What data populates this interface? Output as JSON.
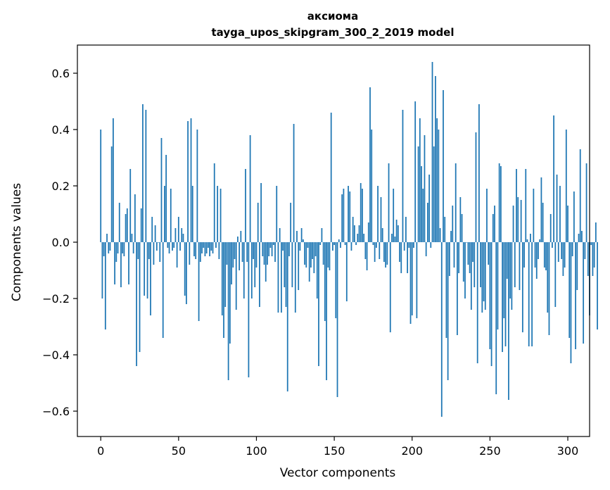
{
  "chart_data": {
    "type": "bar",
    "title": "аксиома",
    "subtitle": "tayga_upos_skipgram_300_2_2019 model",
    "xlabel": "Vector components",
    "ylabel": "Components values",
    "xlim": [
      -15,
      314
    ],
    "ylim": [
      -0.69,
      0.7
    ],
    "xticks": [
      0,
      50,
      100,
      150,
      200,
      250,
      300
    ],
    "xtick_labels": [
      "0",
      "50",
      "100",
      "150",
      "200",
      "250",
      "300"
    ],
    "yticks": [
      -0.6,
      -0.4,
      -0.2,
      0.0,
      0.2,
      0.4,
      0.6
    ],
    "ytick_labels": [
      "−0.6",
      "−0.4",
      "−0.2",
      "0.0",
      "0.2",
      "0.4",
      "0.6"
    ],
    "grid": false,
    "bar_color": "#1f77b4",
    "series": [
      {
        "values": [
          0.4,
          -0.2,
          -0.05,
          -0.31,
          0.03,
          -0.04,
          -0.03,
          0.34,
          0.44,
          -0.15,
          -0.07,
          -0.04,
          0.14,
          -0.16,
          -0.04,
          -0.05,
          0.1,
          0.12,
          -0.15,
          0.26,
          0.03,
          -0.04,
          0.17,
          -0.44,
          -0.06,
          -0.39,
          0.12,
          0.49,
          -0.19,
          0.47,
          -0.2,
          -0.06,
          -0.26,
          0.09,
          -0.08,
          0.06,
          -0.03,
          0.0,
          -0.07,
          0.37,
          -0.34,
          0.2,
          0.31,
          -0.02,
          -0.04,
          0.19,
          -0.03,
          -0.02,
          0.05,
          -0.09,
          0.09,
          -0.03,
          0.05,
          0.03,
          -0.19,
          -0.22,
          0.43,
          -0.08,
          0.44,
          0.2,
          -0.05,
          -0.06,
          0.4,
          -0.28,
          -0.07,
          -0.04,
          -0.02,
          -0.05,
          -0.04,
          -0.02,
          -0.05,
          -0.03,
          -0.04,
          0.28,
          -0.02,
          0.2,
          -0.06,
          0.19,
          -0.26,
          -0.34,
          -0.23,
          -0.08,
          -0.49,
          -0.36,
          -0.15,
          -0.09,
          -0.06,
          -0.24,
          0.02,
          -0.1,
          0.04,
          -0.07,
          -0.2,
          0.26,
          -0.07,
          -0.48,
          0.38,
          -0.2,
          -0.06,
          -0.16,
          -0.09,
          0.14,
          -0.23,
          0.21,
          -0.05,
          -0.08,
          -0.14,
          -0.08,
          -0.05,
          -0.02,
          -0.05,
          -0.01,
          -0.07,
          0.2,
          -0.25,
          0.05,
          -0.25,
          -0.03,
          -0.16,
          -0.23,
          -0.53,
          -0.05,
          0.14,
          -0.16,
          0.42,
          -0.25,
          0.04,
          -0.17,
          -0.03,
          0.05,
          0.01,
          -0.08,
          -0.09,
          -0.02,
          -0.14,
          -0.09,
          -0.06,
          -0.11,
          -0.05,
          -0.2,
          -0.44,
          -0.01,
          0.05,
          -0.08,
          -0.28,
          -0.49,
          -0.09,
          -0.1,
          0.46,
          -0.03,
          -0.01,
          -0.27,
          -0.55,
          0.01,
          -0.02,
          0.17,
          0.19,
          -0.01,
          -0.21,
          0.2,
          0.18,
          -0.03,
          0.09,
          0.06,
          -0.01,
          0.03,
          0.06,
          0.21,
          0.19,
          0.03,
          -0.06,
          -0.1,
          0.07,
          0.55,
          0.4,
          -0.01,
          -0.07,
          -0.02,
          0.2,
          -0.06,
          0.16,
          0.05,
          -0.07,
          -0.09,
          -0.08,
          0.28,
          -0.32,
          0.03,
          0.19,
          0.02,
          0.08,
          0.06,
          -0.07,
          -0.11,
          0.47,
          -0.03,
          0.09,
          -0.11,
          -0.02,
          -0.29,
          -0.26,
          -0.02,
          0.5,
          -0.27,
          0.34,
          0.44,
          0.27,
          0.19,
          0.38,
          -0.05,
          0.14,
          0.24,
          -0.02,
          0.64,
          0.34,
          0.59,
          0.44,
          0.4,
          0.05,
          -0.62,
          0.54,
          0.09,
          -0.34,
          -0.49,
          -0.12,
          0.04,
          0.13,
          -0.09,
          0.28,
          -0.33,
          -0.11,
          0.16,
          0.1,
          -0.14,
          -0.2,
          0.0,
          -0.08,
          -0.11,
          -0.24,
          -0.07,
          -0.16,
          0.39,
          -0.43,
          0.49,
          -0.16,
          -0.25,
          -0.21,
          -0.24,
          0.19,
          -0.08,
          -0.38,
          -0.44,
          0.1,
          0.13,
          -0.54,
          -0.31,
          0.28,
          0.27,
          -0.39,
          -0.27,
          -0.37,
          -0.13,
          -0.56,
          -0.2,
          -0.24,
          0.13,
          -0.16,
          0.26,
          0.16,
          -0.17,
          0.15,
          -0.32,
          -0.09,
          0.26,
          0.01,
          -0.37,
          0.03,
          -0.37,
          0.19,
          -0.09,
          -0.13,
          -0.06,
          0.01,
          0.23,
          0.14,
          -0.09,
          -0.1,
          -0.25,
          -0.33,
          0.1,
          -0.02,
          0.45,
          -0.23,
          0.24,
          -0.07,
          0.2,
          -0.06,
          -0.12,
          -0.09,
          0.4,
          0.13,
          -0.34,
          -0.43,
          -0.05,
          0.18,
          -0.38,
          -0.17,
          0.03,
          0.33,
          0.04,
          -0.36,
          -0.06,
          0.28,
          -0.12,
          -0.26,
          -0.01,
          -0.12,
          -0.09,
          0.07,
          -0.31
        ]
      }
    ]
  }
}
